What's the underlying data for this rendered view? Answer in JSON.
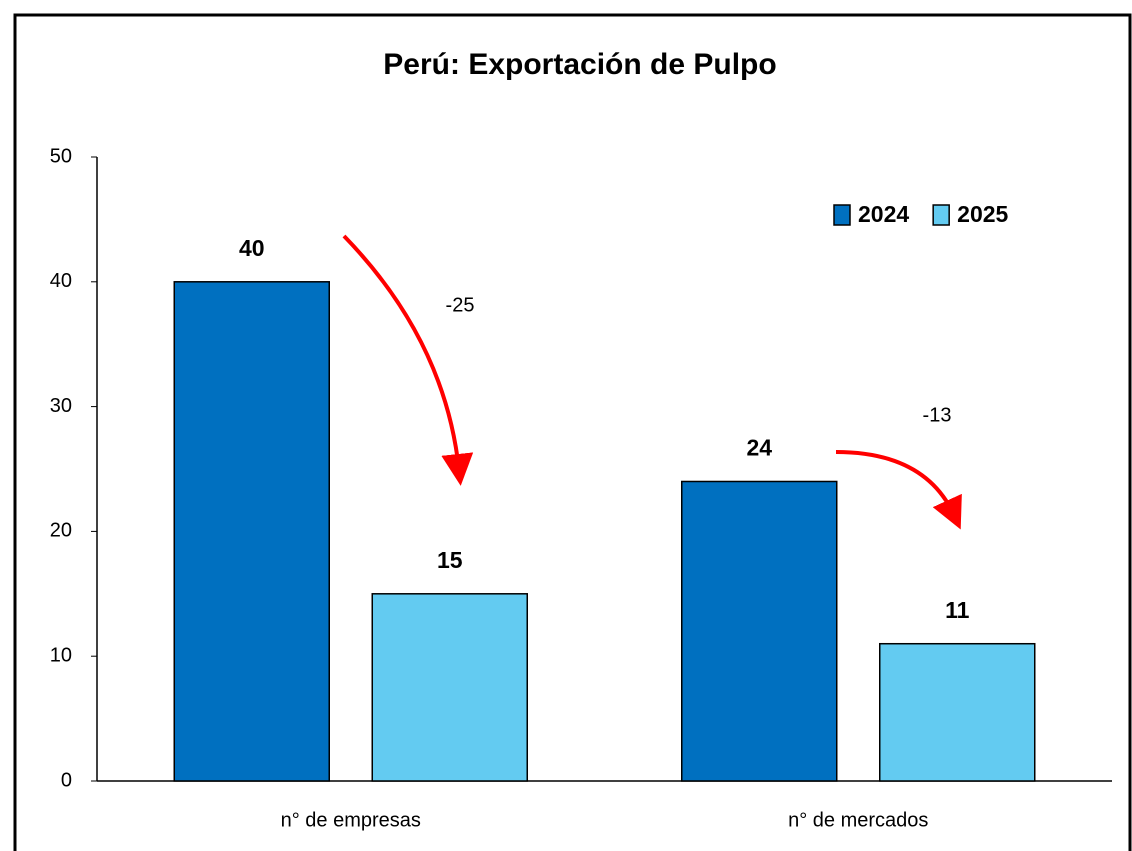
{
  "chart_data": {
    "type": "bar",
    "title": "Perú: Exportación de Pulpo",
    "categories": [
      "n° de empresas",
      "n° de mercados"
    ],
    "series": [
      {
        "name": "2024",
        "color": "#0070c0",
        "values": [
          40,
          24
        ]
      },
      {
        "name": "2025",
        "color": "#63cbf1",
        "values": [
          15,
          11
        ]
      }
    ],
    "annotations": [
      "-25",
      "-13"
    ],
    "ylim": [
      0,
      50
    ],
    "yticks": [
      0,
      10,
      20,
      30,
      40,
      50
    ],
    "grid": false,
    "legend": "upper right"
  }
}
